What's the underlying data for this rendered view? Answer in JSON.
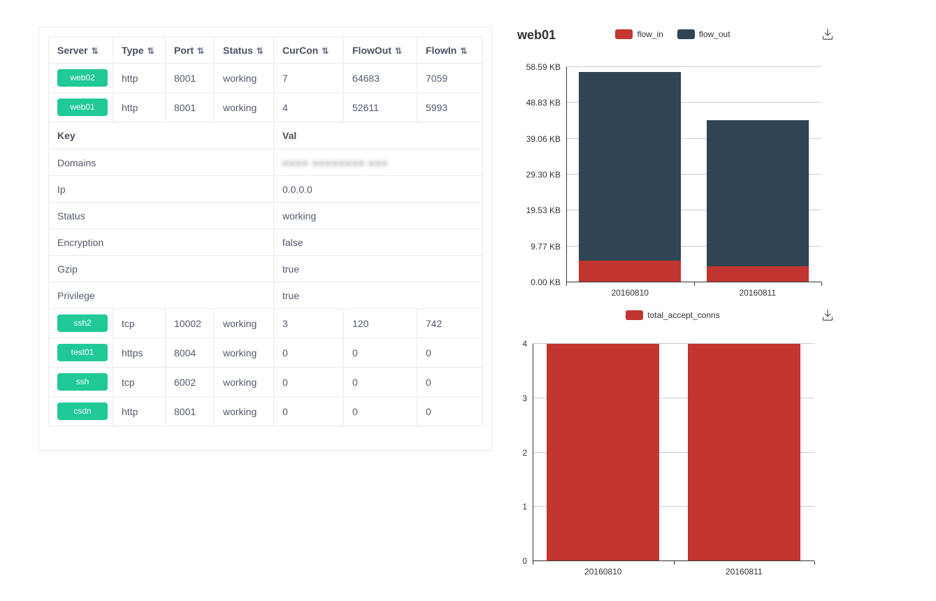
{
  "page": {
    "background": "#ffffff"
  },
  "table": {
    "badge_color": "#20c997",
    "sort_icon": "⇅",
    "columns": [
      {
        "label": "Server"
      },
      {
        "label": "Type"
      },
      {
        "label": "Port"
      },
      {
        "label": "Status"
      },
      {
        "label": "CurCon"
      },
      {
        "label": "FlowOut"
      },
      {
        "label": "FlowIn"
      }
    ],
    "rows_top": [
      {
        "server": "web02",
        "type": "http",
        "port": "8001",
        "status": "working",
        "curcon": "7",
        "flowout": "64683",
        "flowin": "7059"
      },
      {
        "server": "web01",
        "type": "http",
        "port": "8001",
        "status": "working",
        "curcon": "4",
        "flowout": "52611",
        "flowin": "5993"
      }
    ],
    "detail": {
      "key_header": "Key",
      "val_header": "Val",
      "rows": [
        {
          "key": "Domains",
          "val": "■■■■ ■■■■■■■■ ■■■",
          "redacted": true
        },
        {
          "key": "Ip",
          "val": "0.0.0.0"
        },
        {
          "key": "Status",
          "val": "working"
        },
        {
          "key": "Encryption",
          "val": "false"
        },
        {
          "key": "Gzip",
          "val": "true"
        },
        {
          "key": "Privilege",
          "val": "true"
        }
      ]
    },
    "rows_bottom": [
      {
        "server": "ssh2",
        "type": "tcp",
        "port": "10002",
        "status": "working",
        "curcon": "3",
        "flowout": "120",
        "flowin": "742"
      },
      {
        "server": "test01",
        "type": "https",
        "port": "8004",
        "status": "working",
        "curcon": "0",
        "flowout": "0",
        "flowin": "0"
      },
      {
        "server": "ssh",
        "type": "tcp",
        "port": "6002",
        "status": "working",
        "curcon": "0",
        "flowout": "0",
        "flowin": "0"
      },
      {
        "server": "csdn",
        "type": "http",
        "port": "8001",
        "status": "working",
        "curcon": "0",
        "flowout": "0",
        "flowin": "0"
      }
    ]
  },
  "chart_data": [
    {
      "type": "bar",
      "title": "web01",
      "stacked": true,
      "unit": "KB",
      "categories": [
        "20160810",
        "20160811"
      ],
      "series": [
        {
          "name": "flow_in",
          "color": "#c23531",
          "values": [
            5.85,
            4.4
          ]
        },
        {
          "name": "flow_out",
          "color": "#2f4554",
          "values": [
            51.38,
            39.7
          ]
        }
      ],
      "ylim": [
        0,
        58.59
      ],
      "ytick_labels": [
        "0.00 KB",
        "9.77 KB",
        "19.53 KB",
        "29.30 KB",
        "39.06 KB",
        "48.83 KB",
        "58.59 KB"
      ],
      "legend_position": "top-center",
      "grid": true
    },
    {
      "type": "bar",
      "title": "",
      "stacked": false,
      "unit": "",
      "categories": [
        "20160810",
        "20160811"
      ],
      "series": [
        {
          "name": "total_accept_conns",
          "color": "#c23531",
          "values": [
            4,
            4
          ]
        }
      ],
      "ylim": [
        0,
        4
      ],
      "ytick_labels": [
        "0",
        "1",
        "2",
        "3",
        "4"
      ],
      "legend_position": "top-center",
      "grid": true
    }
  ]
}
